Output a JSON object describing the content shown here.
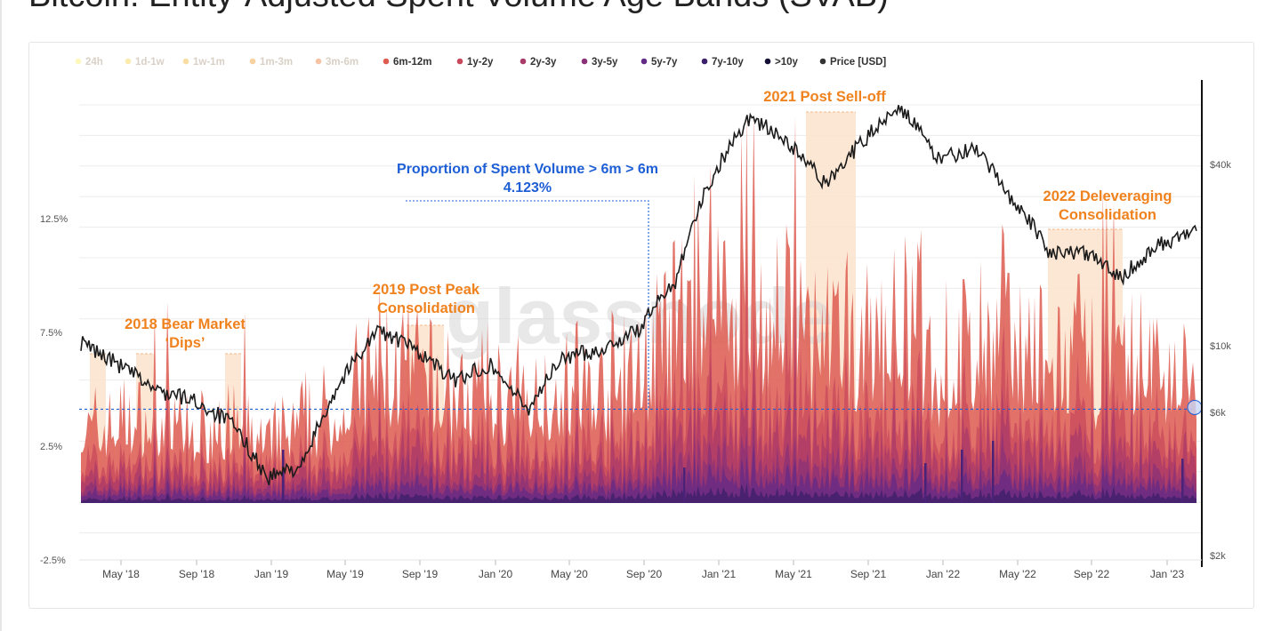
{
  "page": {
    "title": "Bitcoin: Entity-Adjusted Spent Volume Age Bands (SVAB)"
  },
  "colors": {
    "accent_orange": "#f0821e",
    "accent_blue": "#1e5fd6",
    "price_line": "#1b1b1b",
    "shade": "#fbe3cd"
  },
  "chart_data": {
    "type": "area",
    "title": "Bitcoin: Entity-Adjusted Spent Volume Age Bands (SVAB)",
    "watermark": "glassnode",
    "legend_position": "top-left",
    "legend": [
      {
        "label": "24h",
        "color": "#fff06a",
        "dim": true
      },
      {
        "label": "1d-1w",
        "color": "#f7d34a",
        "dim": true
      },
      {
        "label": "1w-1m",
        "color": "#f2b534",
        "dim": true
      },
      {
        "label": "1m-3m",
        "color": "#ef9a2c",
        "dim": true
      },
      {
        "label": "3m-6m",
        "color": "#ea7c37",
        "dim": true
      },
      {
        "label": "6m-12m",
        "color": "#dd5b4f",
        "dim": false
      },
      {
        "label": "1y-2y",
        "color": "#c8485c",
        "dim": false
      },
      {
        "label": "2y-3y",
        "color": "#a93a6a",
        "dim": false
      },
      {
        "label": "3y-5y",
        "color": "#8a3277",
        "dim": false
      },
      {
        "label": "5y-7y",
        "color": "#632a86",
        "dim": false
      },
      {
        "label": "7y-10y",
        "color": "#3c1f6a",
        "dim": false
      },
      {
        "label": ">10y",
        "color": "#141035",
        "dim": false
      },
      {
        "label": "Price [USD]",
        "color": "#333333",
        "dim": false
      }
    ],
    "x_ticks": [
      "May '18",
      "Sep '18",
      "Jan '19",
      "May '19",
      "Sep '19",
      "Jan '20",
      "May '20",
      "Sep '20",
      "Jan '21",
      "May '21",
      "Sep '21",
      "Jan '22",
      "May '22",
      "Sep '22",
      "Jan '23"
    ],
    "x_range": [
      "2018-03",
      "2023-03"
    ],
    "y_left": {
      "ticks": [
        "12.5%",
        "7.5%",
        "2.5%",
        "-2.5%"
      ],
      "range": [
        -2.5,
        15
      ]
    },
    "y_right": {
      "ticks": [
        "$40k",
        "$10k",
        "$6k",
        "$2k"
      ],
      "scale": "log",
      "range": [
        2000,
        60000
      ]
    },
    "series": [
      {
        "name": "Proportion of Spent Volume > 6m (total)",
        "x": [
          "2018-03",
          "2018-05",
          "2018-07",
          "2018-09",
          "2018-11",
          "2019-01",
          "2019-03",
          "2019-05",
          "2019-07",
          "2019-09",
          "2019-11",
          "2020-01",
          "2020-03",
          "2020-05",
          "2020-07",
          "2020-09",
          "2020-11",
          "2021-01",
          "2021-03",
          "2021-05",
          "2021-07",
          "2021-09",
          "2021-11",
          "2022-01",
          "2022-03",
          "2022-05",
          "2022-07",
          "2022-09",
          "2022-11",
          "2023-01",
          "2023-03"
        ],
        "values": [
          3.5,
          4.2,
          3.8,
          3.5,
          3.9,
          3.0,
          4.0,
          4.5,
          7.0,
          6.5,
          5.0,
          5.5,
          5.0,
          6.0,
          5.5,
          6.5,
          8.5,
          11.5,
          9.5,
          9.0,
          8.0,
          7.5,
          8.5,
          7.0,
          7.5,
          8.5,
          6.5,
          7.0,
          6.5,
          7.5,
          5.5
        ]
      },
      {
        "name": "Price [USD]",
        "x": [
          "2018-03",
          "2018-05",
          "2018-07",
          "2018-09",
          "2018-11",
          "2019-01",
          "2019-03",
          "2019-05",
          "2019-07",
          "2019-09",
          "2019-11",
          "2020-01",
          "2020-03",
          "2020-05",
          "2020-07",
          "2020-09",
          "2020-11",
          "2021-01",
          "2021-03",
          "2021-05",
          "2021-07",
          "2021-09",
          "2021-11",
          "2022-01",
          "2022-03",
          "2022-05",
          "2022-07",
          "2022-09",
          "2022-11",
          "2023-01",
          "2023-03"
        ],
        "values": [
          10000,
          8500,
          7000,
          6500,
          5500,
          3600,
          4000,
          7500,
          11000,
          9500,
          7500,
          8500,
          6000,
          9000,
          9500,
          11000,
          16000,
          35000,
          55000,
          45000,
          33000,
          45000,
          60000,
          40000,
          43000,
          30000,
          20000,
          19500,
          16500,
          21000,
          23000
        ]
      }
    ],
    "reference_line": {
      "label": "Proportion of Spent Volume > 6m",
      "value": "4.123%",
      "y": 4.123
    },
    "annotations": [
      {
        "label": "2018 Bear Market",
        "sub": "‘Dips’"
      },
      {
        "label": "2019 Post Peak",
        "sub": "Consolidation"
      },
      {
        "label": "2021 Post Sell-off",
        "sub": ""
      },
      {
        "label": "2022 Deleveraging",
        "sub": "Consolidation"
      }
    ],
    "annotation_blue": {
      "label": "Proportion of Spent Volume > 6m",
      "value": "4.123%"
    }
  }
}
